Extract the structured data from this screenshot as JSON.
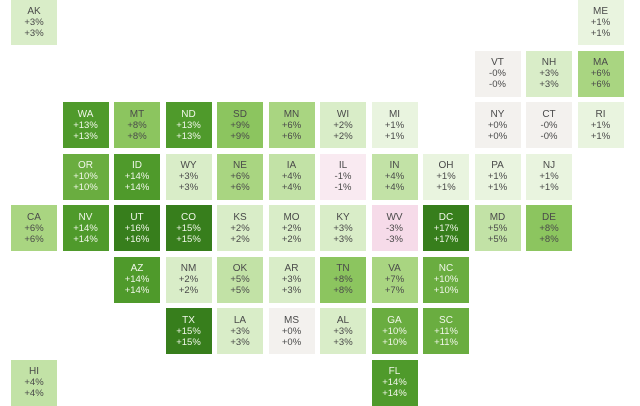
{
  "chart_data": {
    "type": "tile-grid-map",
    "title": "",
    "color_scale": {
      "negative_colors": [
        "#f9eaf1",
        "#f6dbe9"
      ],
      "positive_colors": [
        "#f3f1ee",
        "#e9f4df",
        "#d9edc8",
        "#c2e2a6",
        "#a9d581",
        "#8cc55f",
        "#6aad40",
        "#4f9a2b",
        "#377e1c"
      ]
    },
    "states": [
      {
        "abbr": "AK",
        "col": 0,
        "row": 0,
        "top": "+3%",
        "bottom": "+3%",
        "value": 3
      },
      {
        "abbr": "ME",
        "col": 11,
        "row": 0,
        "top": "+1%",
        "bottom": "+1%",
        "value": 1
      },
      {
        "abbr": "VT",
        "col": 9,
        "row": 1,
        "top": "-0%",
        "bottom": "-0%",
        "value": 0
      },
      {
        "abbr": "NH",
        "col": 10,
        "row": 1,
        "top": "+3%",
        "bottom": "+3%",
        "value": 3
      },
      {
        "abbr": "MA",
        "col": 11,
        "row": 1,
        "top": "+6%",
        "bottom": "+6%",
        "value": 6
      },
      {
        "abbr": "WA",
        "col": 1,
        "row": 2,
        "top": "+13%",
        "bottom": "+13%",
        "value": 13
      },
      {
        "abbr": "MT",
        "col": 2,
        "row": 2,
        "top": "+8%",
        "bottom": "+8%",
        "value": 8
      },
      {
        "abbr": "ND",
        "col": 3,
        "row": 2,
        "top": "+13%",
        "bottom": "+13%",
        "value": 13
      },
      {
        "abbr": "SD",
        "col": 4,
        "row": 2,
        "top": "+9%",
        "bottom": "+9%",
        "value": 9
      },
      {
        "abbr": "MN",
        "col": 5,
        "row": 2,
        "top": "+6%",
        "bottom": "+6%",
        "value": 6
      },
      {
        "abbr": "WI",
        "col": 6,
        "row": 2,
        "top": "+2%",
        "bottom": "+2%",
        "value": 2
      },
      {
        "abbr": "MI",
        "col": 7,
        "row": 2,
        "top": "+1%",
        "bottom": "+1%",
        "value": 1
      },
      {
        "abbr": "NY",
        "col": 9,
        "row": 2,
        "top": "+0%",
        "bottom": "+0%",
        "value": 0
      },
      {
        "abbr": "CT",
        "col": 10,
        "row": 2,
        "top": "-0%",
        "bottom": "-0%",
        "value": 0
      },
      {
        "abbr": "RI",
        "col": 11,
        "row": 2,
        "top": "+1%",
        "bottom": "+1%",
        "value": 1
      },
      {
        "abbr": "OR",
        "col": 1,
        "row": 3,
        "top": "+10%",
        "bottom": "+10%",
        "value": 10
      },
      {
        "abbr": "ID",
        "col": 2,
        "row": 3,
        "top": "+14%",
        "bottom": "+14%",
        "value": 14
      },
      {
        "abbr": "WY",
        "col": 3,
        "row": 3,
        "top": "+3%",
        "bottom": "+3%",
        "value": 3
      },
      {
        "abbr": "NE",
        "col": 4,
        "row": 3,
        "top": "+6%",
        "bottom": "+6%",
        "value": 6
      },
      {
        "abbr": "IA",
        "col": 5,
        "row": 3,
        "top": "+4%",
        "bottom": "+4%",
        "value": 4
      },
      {
        "abbr": "IL",
        "col": 6,
        "row": 3,
        "top": "-1%",
        "bottom": "-1%",
        "value": -1
      },
      {
        "abbr": "IN",
        "col": 7,
        "row": 3,
        "top": "+4%",
        "bottom": "+4%",
        "value": 4
      },
      {
        "abbr": "OH",
        "col": 8,
        "row": 3,
        "top": "+1%",
        "bottom": "+1%",
        "value": 1
      },
      {
        "abbr": "PA",
        "col": 9,
        "row": 3,
        "top": "+1%",
        "bottom": "+1%",
        "value": 1
      },
      {
        "abbr": "NJ",
        "col": 10,
        "row": 3,
        "top": "+1%",
        "bottom": "+1%",
        "value": 1
      },
      {
        "abbr": "CA",
        "col": 0,
        "row": 4,
        "top": "+6%",
        "bottom": "+6%",
        "value": 6
      },
      {
        "abbr": "NV",
        "col": 1,
        "row": 4,
        "top": "+14%",
        "bottom": "+14%",
        "value": 14
      },
      {
        "abbr": "UT",
        "col": 2,
        "row": 4,
        "top": "+16%",
        "bottom": "+16%",
        "value": 16
      },
      {
        "abbr": "CO",
        "col": 3,
        "row": 4,
        "top": "+15%",
        "bottom": "+15%",
        "value": 15
      },
      {
        "abbr": "KS",
        "col": 4,
        "row": 4,
        "top": "+2%",
        "bottom": "+2%",
        "value": 2
      },
      {
        "abbr": "MO",
        "col": 5,
        "row": 4,
        "top": "+2%",
        "bottom": "+2%",
        "value": 2
      },
      {
        "abbr": "KY",
        "col": 6,
        "row": 4,
        "top": "+3%",
        "bottom": "+3%",
        "value": 3
      },
      {
        "abbr": "WV",
        "col": 7,
        "row": 4,
        "top": "-3%",
        "bottom": "-3%",
        "value": -3
      },
      {
        "abbr": "DC",
        "col": 8,
        "row": 4,
        "top": "+17%",
        "bottom": "+17%",
        "value": 17
      },
      {
        "abbr": "MD",
        "col": 9,
        "row": 4,
        "top": "+5%",
        "bottom": "+5%",
        "value": 5
      },
      {
        "abbr": "DE",
        "col": 10,
        "row": 4,
        "top": "+8%",
        "bottom": "+8%",
        "value": 8
      },
      {
        "abbr": "AZ",
        "col": 2,
        "row": 5,
        "top": "+14%",
        "bottom": "+14%",
        "value": 14
      },
      {
        "abbr": "NM",
        "col": 3,
        "row": 5,
        "top": "+2%",
        "bottom": "+2%",
        "value": 2
      },
      {
        "abbr": "OK",
        "col": 4,
        "row": 5,
        "top": "+5%",
        "bottom": "+5%",
        "value": 5
      },
      {
        "abbr": "AR",
        "col": 5,
        "row": 5,
        "top": "+3%",
        "bottom": "+3%",
        "value": 3
      },
      {
        "abbr": "TN",
        "col": 6,
        "row": 5,
        "top": "+8%",
        "bottom": "+8%",
        "value": 8
      },
      {
        "abbr": "VA",
        "col": 7,
        "row": 5,
        "top": "+7%",
        "bottom": "+7%",
        "value": 7
      },
      {
        "abbr": "NC",
        "col": 8,
        "row": 5,
        "top": "+10%",
        "bottom": "+10%",
        "value": 10
      },
      {
        "abbr": "TX",
        "col": 3,
        "row": 6,
        "top": "+15%",
        "bottom": "+15%",
        "value": 15
      },
      {
        "abbr": "LA",
        "col": 4,
        "row": 6,
        "top": "+3%",
        "bottom": "+3%",
        "value": 3
      },
      {
        "abbr": "MS",
        "col": 5,
        "row": 6,
        "top": "+0%",
        "bottom": "+0%",
        "value": 0
      },
      {
        "abbr": "AL",
        "col": 6,
        "row": 6,
        "top": "+3%",
        "bottom": "+3%",
        "value": 3
      },
      {
        "abbr": "GA",
        "col": 7,
        "row": 6,
        "top": "+10%",
        "bottom": "+10%",
        "value": 10
      },
      {
        "abbr": "SC",
        "col": 8,
        "row": 6,
        "top": "+11%",
        "bottom": "+11%",
        "value": 11
      },
      {
        "abbr": "HI",
        "col": 0,
        "row": 7,
        "top": "+4%",
        "bottom": "+4%",
        "value": 4
      },
      {
        "abbr": "FL",
        "col": 7,
        "row": 7,
        "top": "+14%",
        "bottom": "+14%",
        "value": 14
      }
    ]
  }
}
